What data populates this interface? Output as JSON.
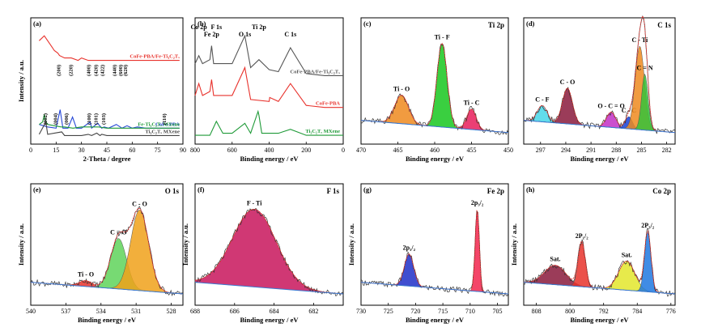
{
  "chart_data": [
    {
      "id": "a",
      "type": "line",
      "panel_label": "(a)",
      "title": "",
      "xlabel": "2-Theta / degree",
      "ylabel": "Intensity / a.u.",
      "xlim": [
        0,
        90
      ],
      "x_reversed": false,
      "x_ticks": [
        "0",
        "15",
        "30",
        "45",
        "60",
        "75",
        "90"
      ],
      "series": [
        {
          "name": "CoFe-PBA/Fe-Ti₃C₂Tₓ",
          "color": "#e8322c",
          "x": [
            5,
            8,
            10,
            12,
            14,
            16,
            17,
            20,
            24,
            28,
            30,
            34,
            36,
            38,
            40,
            45,
            50,
            55,
            60,
            65,
            70,
            75,
            80,
            85,
            88
          ],
          "y": [
            40,
            42,
            40,
            38,
            36,
            35,
            34,
            33,
            33,
            32,
            33,
            32,
            32,
            32,
            32,
            32,
            32,
            32,
            32,
            32,
            32,
            32,
            32,
            32,
            32
          ]
        },
        {
          "name": "CoFe-PBA",
          "color": "#2547d6",
          "x": [
            5,
            10,
            15,
            17.4,
            19,
            22,
            24.7,
            27,
            30,
            35.2,
            36,
            39.5,
            42,
            43.4,
            46,
            50.6,
            54,
            56.9,
            60,
            63,
            68,
            72,
            76,
            80,
            85,
            88
          ],
          "y": [
            6,
            5,
            4.5,
            12,
            4.5,
            4.5,
            9,
            4.5,
            4.5,
            7,
            4.5,
            6.5,
            4.5,
            5,
            4.5,
            6,
            4.5,
            5.5,
            4.5,
            5,
            4.5,
            4.5,
            4.5,
            4.5,
            4.5,
            4.5
          ]
        },
        {
          "name": "Fe-Ti₃C₂Tₓ MXene",
          "color": "#1f9a38",
          "x": [
            5,
            7,
            8,
            9,
            10,
            14,
            18,
            20,
            25,
            30,
            35,
            40,
            45,
            50,
            55,
            60,
            65,
            70,
            75,
            80,
            85,
            88
          ],
          "y": [
            6,
            7,
            10,
            7,
            6,
            5.5,
            5,
            5,
            4.5,
            5,
            5,
            5,
            4.5,
            4.5,
            4.5,
            4.5,
            4.5,
            4.5,
            4.5,
            4.5,
            4.5,
            4.5
          ]
        },
        {
          "name": "Ti₃C₂Tₓ MXene",
          "color": "#444444",
          "x": [
            5,
            8.9,
            10,
            18.3,
            20,
            27.5,
            30,
            34,
            36,
            39,
            41,
            42,
            45,
            50,
            55,
            60,
            65,
            70,
            75,
            80,
            85,
            88
          ],
          "y": [
            2,
            7,
            2,
            3,
            1.5,
            1.5,
            1.5,
            2,
            1.5,
            2.5,
            1.5,
            2,
            1.5,
            1.5,
            1.5,
            1.5,
            1.5,
            1.5,
            1.5,
            1.5,
            1.5,
            1.5
          ]
        }
      ],
      "annotations": [
        {
          "text": "(002)",
          "x": 9.5
        },
        {
          "text": "(004)",
          "x": 15.5
        },
        {
          "text": "(006)",
          "x": 22
        },
        {
          "text": "(100)",
          "x": 35.5
        },
        {
          "text": "(101)",
          "x": 39.5
        },
        {
          "text": "(103)",
          "x": 44
        },
        {
          "text": "(110)",
          "x": 80
        },
        {
          "text": "(200)",
          "x": 17.4
        },
        {
          "text": "(220)",
          "x": 24.7
        },
        {
          "text": "(400)",
          "x": 35.2
        },
        {
          "text": "(420)",
          "x": 39.5
        },
        {
          "text": "(422)",
          "x": 43.4
        },
        {
          "text": "(440)",
          "x": 50.6
        },
        {
          "text": "(600)",
          "x": 54
        },
        {
          "text": "(620)",
          "x": 56.9
        }
      ]
    },
    {
      "id": "b",
      "type": "line",
      "panel_label": "(b)",
      "title": "",
      "xlabel": "Binding energy / eV",
      "ylabel": "",
      "xlim": [
        800,
        0
      ],
      "x_reversed": true,
      "x_ticks": [
        "800",
        "600",
        "400",
        "200",
        "0"
      ],
      "series": [
        {
          "name": "CoFe-PBA/Fe-Ti₃C₂Tₓ",
          "color": "#555555",
          "x": [
            800,
            780,
            760,
            720,
            711,
            700,
            600,
            531,
            500,
            455,
            400,
            350,
            285,
            200,
            100,
            0
          ],
          "y": [
            38,
            42,
            38,
            40,
            47,
            38,
            38,
            52,
            36,
            40,
            35,
            34,
            46,
            33,
            32,
            32
          ]
        },
        {
          "name": "CoFe-PBA",
          "color": "#e8322c",
          "x": [
            800,
            780,
            760,
            720,
            711,
            700,
            600,
            531,
            500,
            400,
            397,
            350,
            285,
            200,
            100,
            0
          ],
          "y": [
            22,
            28,
            22,
            24,
            30,
            22,
            22,
            36,
            20,
            19,
            21,
            19,
            28,
            17,
            16,
            16
          ]
        },
        {
          "name": "Ti₃C₂Tₓ MXene",
          "color": "#1f9a38",
          "x": [
            800,
            720,
            685,
            650,
            600,
            531,
            500,
            460,
            455,
            440,
            400,
            350,
            285,
            200,
            100,
            0
          ],
          "y": [
            2,
            2,
            9,
            3,
            3,
            8,
            3,
            14,
            12,
            3,
            3,
            3,
            5,
            2,
            2,
            2
          ]
        }
      ],
      "annotations": [
        {
          "text": "Co 2p",
          "x": 780
        },
        {
          "text": "Fe 2p",
          "x": 711
        },
        {
          "text": "F 1s",
          "x": 685
        },
        {
          "text": "O 1s",
          "x": 531
        },
        {
          "text": "Ti 2p",
          "x": 455
        },
        {
          "text": "C 1s",
          "x": 285
        }
      ]
    },
    {
      "id": "c",
      "type": "area",
      "panel_label": "(c)",
      "title": "Ti 2p",
      "xlabel": "Binding energy / eV",
      "ylabel": "",
      "xlim": [
        470,
        450
      ],
      "x_reversed": true,
      "x_ticks": [
        "470",
        "465",
        "460",
        "455",
        "450"
      ],
      "peaks": [
        {
          "label": "Ti - O",
          "center": 464.5,
          "height": 0.28,
          "fwhm": 2.2,
          "color": "#ef8a1e"
        },
        {
          "label": "Ti - F",
          "center": 459.0,
          "height": 0.82,
          "fwhm": 1.6,
          "color": "#18c71e"
        },
        {
          "label": "Ti - C",
          "center": 455.0,
          "height": 0.2,
          "fwhm": 1.5,
          "color": "#e81d5c"
        }
      ]
    },
    {
      "id": "d",
      "type": "area",
      "panel_label": "(d)",
      "title": "C 1s",
      "xlabel": "Binding energy / eV",
      "ylabel": "",
      "xlim": [
        299,
        281
      ],
      "x_reversed": true,
      "x_ticks": [
        "297",
        "294",
        "291",
        "288",
        "285",
        "282"
      ],
      "peaks": [
        {
          "label": "C - F",
          "center": 296.8,
          "height": 0.16,
          "fwhm": 1.4,
          "color": "#46d6e8"
        },
        {
          "label": "C - O",
          "center": 293.8,
          "height": 0.35,
          "fwhm": 1.4,
          "color": "#8a1a3c"
        },
        {
          "label": "O - C = O",
          "center": 288.6,
          "height": 0.15,
          "fwhm": 1.3,
          "color": "#c22fc6"
        },
        {
          "label": "C - C",
          "center": 286.5,
          "height": 0.12,
          "fwhm": 1.0,
          "color": "#1740d8"
        },
        {
          "label": "C - Ti",
          "center": 285.2,
          "height": 0.82,
          "fwhm": 1.3,
          "color": "#ef8a1e"
        },
        {
          "label": "C = N",
          "center": 284.6,
          "height": 0.55,
          "fwhm": 0.9,
          "color": "#35c23a"
        }
      ]
    },
    {
      "id": "e",
      "type": "area",
      "panel_label": "(e)",
      "title": "O 1s",
      "xlabel": "Binding energy / eV",
      "ylabel": "Intensity / a.u.",
      "xlim": [
        540,
        527
      ],
      "x_reversed": true,
      "x_ticks": [
        "540",
        "537",
        "534",
        "531",
        "528"
      ],
      "peaks": [
        {
          "label": "Ti - O",
          "center": 535.3,
          "height": 0.06,
          "fwhm": 1.3,
          "color": "#e8322c"
        },
        {
          "label": "C = O",
          "center": 532.5,
          "height": 0.52,
          "fwhm": 1.6,
          "color": "#5fd35b"
        },
        {
          "label": "C - O",
          "center": 530.7,
          "height": 0.83,
          "fwhm": 1.8,
          "color": "#f0a11a"
        }
      ]
    },
    {
      "id": "f",
      "type": "area",
      "panel_label": "(f)",
      "title": "F 1s",
      "xlabel": "Binding energy / eV",
      "ylabel": "Intensity / a.u.",
      "xlim": [
        688,
        680.5
      ],
      "x_reversed": true,
      "x_ticks": [
        "688",
        "686",
        "684",
        "682"
      ],
      "peaks": [
        {
          "label": "F - Ti",
          "center": 685.0,
          "height": 0.8,
          "fwhm": 2.6,
          "color": "#c8155c"
        }
      ]
    },
    {
      "id": "g",
      "type": "area",
      "panel_label": "(g)",
      "title": "Fe 2p",
      "xlabel": "Binding energy / eV",
      "ylabel": "Intensity / a.u.",
      "xlim": [
        730,
        703
      ],
      "x_reversed": true,
      "x_ticks": [
        "730",
        "725",
        "720",
        "715",
        "710",
        "705"
      ],
      "peaks": [
        {
          "label": "2p₁/₂",
          "center": 721.2,
          "height": 0.33,
          "fwhm": 2.0,
          "color": "#1f2fc8"
        },
        {
          "label": "2p₃/₂",
          "center": 708.7,
          "height": 0.85,
          "fwhm": 0.9,
          "color": "#f2244e"
        }
      ]
    },
    {
      "id": "h",
      "type": "area",
      "panel_label": "(h)",
      "title": "Co 2p",
      "xlabel": "Binding energy / eV",
      "ylabel": "Intensity / a.u.",
      "xlim": [
        811,
        775
      ],
      "x_reversed": true,
      "x_ticks": [
        "808",
        "800",
        "792",
        "784",
        "776"
      ],
      "peaks": [
        {
          "label": "Sat.",
          "center": 803.5,
          "height": 0.2,
          "fwhm": 6.0,
          "color": "#8a1a3c"
        },
        {
          "label": "2P₁/₂",
          "center": 797.2,
          "height": 0.46,
          "fwhm": 2.0,
          "color": "#e8322c"
        },
        {
          "label": "Sat.",
          "center": 786.5,
          "height": 0.3,
          "fwhm": 4.5,
          "color": "#e3e62c"
        },
        {
          "label": "2P₃/₂",
          "center": 781.5,
          "height": 0.62,
          "fwhm": 1.8,
          "color": "#1f78e0"
        }
      ]
    }
  ]
}
